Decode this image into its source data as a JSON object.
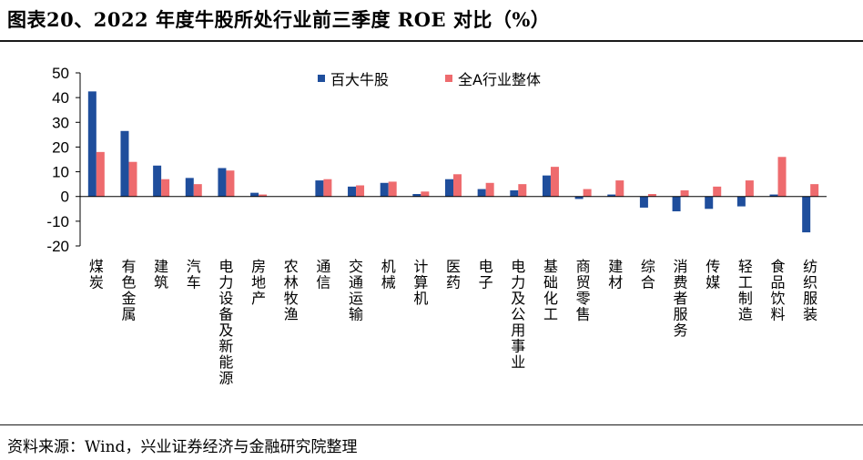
{
  "header": {
    "title": "图表20、2022 年度牛股所处行业前三季度 ROE 对比（%）"
  },
  "footer": {
    "source": "资料来源：Wind，兴业证券经济与金融研究院整理"
  },
  "chart_data": {
    "type": "bar",
    "title": "图表20、2022 年度牛股所处行业前三季度 ROE 对比（%）",
    "ylim": [
      -20,
      50
    ],
    "yticks": [
      50,
      40,
      30,
      20,
      10,
      0,
      -10,
      -20
    ],
    "grid": false,
    "legend_position": "top-center",
    "colors": {
      "series1": "#1f4e9c",
      "series2": "#ee6b6e"
    },
    "categories": [
      "煤炭",
      "有色金属",
      "建筑",
      "汽车",
      "电力设备及新能源",
      "房地产",
      "农林牧渔",
      "通信",
      "交通运输",
      "机械",
      "计算机",
      "医药",
      "电子",
      "电力及公用事业",
      "基础化工",
      "商贸零售",
      "建材",
      "综合",
      "消费者服务",
      "传媒",
      "轻工制造",
      "食品饮料",
      "纺织服装"
    ],
    "series": [
      {
        "name": "百大牛股",
        "values": [
          42.5,
          26.5,
          12.5,
          7.5,
          11.5,
          1.5,
          0,
          6.5,
          4.0,
          5.5,
          1.0,
          7.0,
          3.0,
          2.5,
          8.5,
          -1.0,
          0.8,
          -4.5,
          -6.0,
          -5.0,
          -4.0,
          0.8,
          -14.5
        ]
      },
      {
        "name": "全A行业整体",
        "values": [
          18.0,
          14.0,
          7.0,
          5.0,
          10.5,
          0.8,
          0,
          7.0,
          4.5,
          6.0,
          2.0,
          9.0,
          5.5,
          5.0,
          12.0,
          3.0,
          6.5,
          1.0,
          2.5,
          4.0,
          6.5,
          16.0,
          5.0
        ]
      }
    ]
  }
}
